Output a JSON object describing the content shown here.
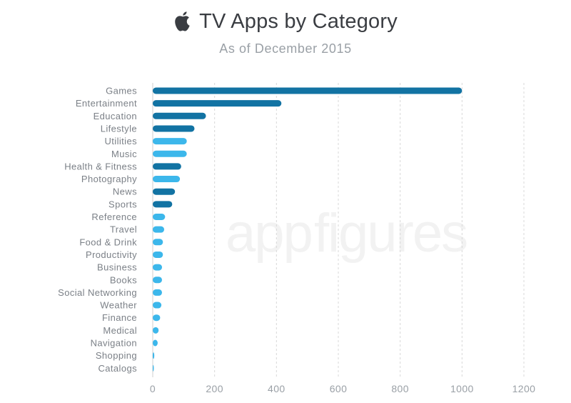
{
  "header": {
    "title": "TV Apps by Category",
    "subtitle": "As of December 2015",
    "logo_icon": "apple-logo-icon"
  },
  "watermark": {
    "text_a": "app",
    "text_b": "figures"
  },
  "colors": {
    "dark": "#1273a3",
    "light": "#3cb7eb",
    "grid": "#d8d8d8",
    "axis": "#cfcfcf"
  },
  "chart_data": {
    "type": "bar",
    "orientation": "horizontal",
    "title": "TV Apps by Category",
    "subtitle": "As of December 2015",
    "xlim": [
      0,
      1200
    ],
    "xticks": [
      0,
      200,
      400,
      600,
      800,
      1000,
      1200
    ],
    "grid": "vertical dashed",
    "categories": [
      "Games",
      "Entertainment",
      "Education",
      "Lifestyle",
      "Utilities",
      "Music",
      "Health & Fitness",
      "Photography",
      "News",
      "Sports",
      "Reference",
      "Travel",
      "Food & Drink",
      "Productivity",
      "Business",
      "Books",
      "Social Networking",
      "Weather",
      "Finance",
      "Medical",
      "Navigation",
      "Shopping",
      "Catalogs"
    ],
    "values": [
      1000,
      416,
      172,
      135,
      110,
      110,
      92,
      88,
      72,
      63,
      40,
      37,
      33,
      33,
      30,
      30,
      30,
      28,
      24,
      19,
      16,
      5,
      1
    ],
    "bar_colors": [
      "dark",
      "dark",
      "dark",
      "dark",
      "light",
      "light",
      "dark",
      "light",
      "dark",
      "dark",
      "light",
      "light",
      "light",
      "light",
      "light",
      "light",
      "light",
      "light",
      "light",
      "light",
      "light",
      "light",
      "light"
    ]
  }
}
